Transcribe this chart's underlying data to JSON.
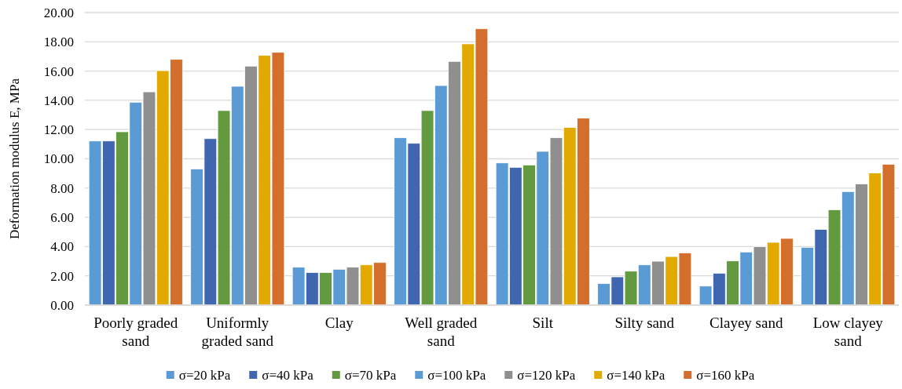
{
  "chart_data": {
    "type": "bar",
    "ylabel": "Deformation modulus E, MPa",
    "categories": [
      "Poorly graded sand",
      "Uniformly graded sand",
      "Clay",
      "Well graded sand",
      "Silt",
      "Silty sand",
      "Clayey sand",
      "Low clayey sand"
    ],
    "series": [
      {
        "name": "σ=20 kPa",
        "color": "#5b9bd5",
        "values": [
          11.22,
          9.31,
          2.59,
          11.44,
          9.72,
          1.47,
          1.3,
          3.95
        ]
      },
      {
        "name": "σ=40 kPa",
        "color": "#3f66ae",
        "values": [
          11.22,
          11.38,
          2.23,
          11.06,
          9.42,
          1.93,
          2.18,
          5.18
        ]
      },
      {
        "name": "σ=70 kPa",
        "color": "#639a3f",
        "values": [
          11.85,
          13.3,
          2.23,
          13.3,
          9.58,
          2.32,
          3.02,
          6.52
        ]
      },
      {
        "name": "σ=100 kPa",
        "color": "#5b9bd5",
        "values": [
          13.87,
          14.96,
          2.45,
          15.01,
          10.51,
          2.75,
          3.63,
          7.76
        ]
      },
      {
        "name": "σ=120 kPa",
        "color": "#8f8f8f",
        "values": [
          14.58,
          16.34,
          2.59,
          16.66,
          11.44,
          3.0,
          4.0,
          8.28
        ]
      },
      {
        "name": "σ=140 kPa",
        "color": "#e2aa00",
        "values": [
          16.03,
          17.07,
          2.75,
          17.86,
          12.15,
          3.32,
          4.29,
          9.03
        ]
      },
      {
        "name": "σ=160 kPa",
        "color": "#d46e2c",
        "values": [
          16.8,
          17.28,
          2.91,
          18.89,
          12.78,
          3.57,
          4.56,
          9.63
        ]
      }
    ],
    "ylim": [
      0,
      20
    ],
    "yticks": [
      {
        "value": 0,
        "label": "0.00"
      },
      {
        "value": 2,
        "label": "2.00"
      },
      {
        "value": 4,
        "label": "4.00"
      },
      {
        "value": 6,
        "label": "6.00"
      },
      {
        "value": 8,
        "label": "8.00"
      },
      {
        "value": 10,
        "label": "10.00"
      },
      {
        "value": 12,
        "label": "12.00"
      },
      {
        "value": 14,
        "label": "14.00"
      },
      {
        "value": 16,
        "label": "16.00"
      },
      {
        "value": 18,
        "label": "18.00"
      },
      {
        "value": 20,
        "label": "20.00"
      }
    ],
    "grid": "y",
    "legend": "bottom"
  }
}
